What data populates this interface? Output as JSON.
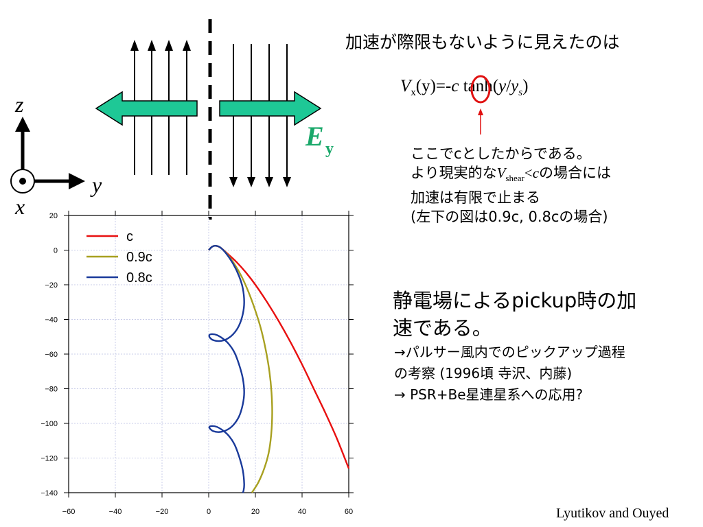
{
  "diagram": {
    "axis_z": "z",
    "axis_y": "y",
    "axis_x": "x",
    "field_symbol": "E",
    "field_subscript": "y",
    "colors": {
      "arrow_fill": "#1ec896",
      "field_label": "#1aa86a",
      "line": "#000000"
    }
  },
  "annotation": {
    "title": "加速が際限もないように見えたのは",
    "equation": {
      "v": "V",
      "v_sub": "x",
      "mid": "(y)=-",
      "c": "c",
      "tanh": " tanh(",
      "arg_y": "y",
      "slash": "/",
      "arg_ys": "y",
      "arg_ys_sub": "s",
      "close": ")"
    },
    "note_line1": "ここでcとしたからである。",
    "note_line2_a": "より現実的な",
    "note_line2_v": "V",
    "note_line2_sub": "shear",
    "note_line2_lt": "<",
    "note_line2_c": "c",
    "note_line2_b": "の場合には",
    "note_line3": "加速は有限で止まる",
    "note_line4": "(左下の図は0.9c, 0.8cの場合)",
    "highlight_color": "#e01010"
  },
  "pickup": {
    "line1": "静電場によるpickup時の加",
    "line2": "速である。",
    "ref1": "→パルサー風内でのピックアップ過程",
    "ref2": "の考察 (1996頃 寺沢、内藤)",
    "ref3": "→ PSR+Be星連星系への応用?"
  },
  "credit": "Lyutikov and Ouyed",
  "chart_data": {
    "type": "line",
    "xlim": [
      -60,
      60
    ],
    "ylim": [
      -140,
      20
    ],
    "xticks": [
      -60,
      -40,
      -20,
      0,
      20,
      40,
      60
    ],
    "yticks": [
      20,
      0,
      -20,
      -40,
      -60,
      -80,
      -100,
      -120,
      -140
    ],
    "xtick_labels": [
      "−60",
      "−40",
      "−20",
      "0",
      "20",
      "40",
      "60"
    ],
    "ytick_labels": [
      "20",
      "0",
      "−20",
      "−40",
      "−60",
      "−80",
      "−100",
      "−120",
      "−140"
    ],
    "grid": true,
    "legend_position": "top-left",
    "series": [
      {
        "name": "c",
        "color": "#e81010",
        "x": [
          0,
          1.5,
          3,
          5,
          8,
          12,
          16,
          20,
          25,
          30,
          35,
          40,
          45,
          50,
          55,
          60
        ],
        "y": [
          0,
          2,
          2.5,
          1.5,
          -2,
          -7,
          -13,
          -20,
          -30,
          -41,
          -53,
          -66,
          -80,
          -94,
          -109,
          -126
        ]
      },
      {
        "name": "0.9c",
        "color": "#a8a020",
        "x": [
          0,
          1.5,
          3,
          5,
          8,
          11,
          14,
          17,
          20,
          22.5,
          24.5,
          26,
          26.9,
          27.2,
          26.8,
          25.7,
          23.8,
          21.3,
          18.5
        ],
        "y": [
          0,
          2,
          2.5,
          1.5,
          -2.5,
          -8,
          -15,
          -24,
          -35,
          -46,
          -58,
          -70,
          -82,
          -94,
          -106,
          -117,
          -126,
          -134,
          -140
        ]
      },
      {
        "name": "0.8c",
        "color": "#1a3a9a",
        "x": [
          0,
          1.5,
          3,
          5,
          7.5,
          10.5,
          13,
          14.6,
          15.2,
          14.6,
          13,
          10.5,
          7.5,
          4.5,
          2,
          0.5,
          0.3,
          1.5,
          3.5,
          6,
          8.5,
          11,
          13,
          14.6,
          15.2,
          14.6,
          13,
          10.5,
          7.5,
          4.5,
          2,
          0.5,
          0.3,
          1.5,
          3.5,
          6,
          8.5,
          11,
          13,
          14.6,
          15.2,
          14.9,
          14.5
        ],
        "y": [
          0,
          2,
          2.5,
          1.5,
          -2,
          -8,
          -15,
          -22,
          -30,
          -37,
          -43.5,
          -48.5,
          -51.5,
          -52.5,
          -52,
          -50.5,
          -49,
          -48.5,
          -49,
          -51,
          -54,
          -59,
          -66,
          -74,
          -82,
          -89,
          -96,
          -101,
          -104,
          -105,
          -104.5,
          -103,
          -102,
          -101.5,
          -102,
          -104,
          -107,
          -112,
          -119,
          -127,
          -135,
          -139,
          -140
        ]
      }
    ]
  }
}
